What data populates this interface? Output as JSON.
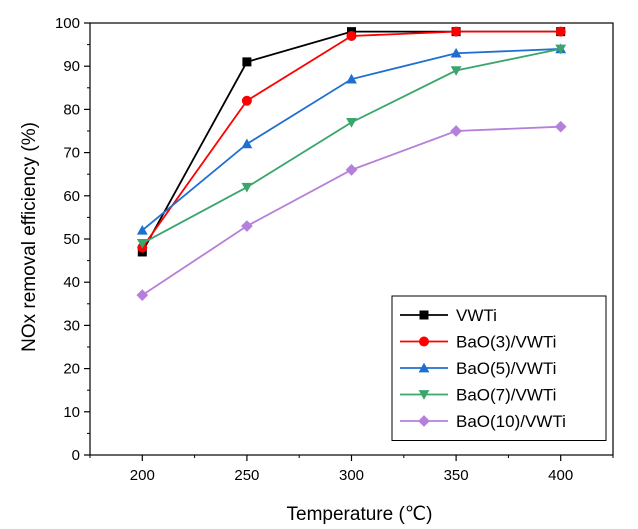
{
  "chart_data": {
    "type": "line",
    "title": "",
    "xlabel": "Temperature (℃)",
    "ylabel": "NOx removal efficiency (%)",
    "x": [
      200,
      250,
      300,
      350,
      400
    ],
    "xlim": [
      175,
      425
    ],
    "ylim": [
      0,
      100
    ],
    "xticks": [
      200,
      250,
      300,
      350,
      400
    ],
    "yticks": [
      0,
      10,
      20,
      30,
      40,
      50,
      60,
      70,
      80,
      90,
      100
    ],
    "grid": false,
    "legend_position": "bottom-right",
    "series": [
      {
        "name": "VWTi",
        "color": "#000000",
        "marker": "square",
        "values": [
          47,
          91,
          98,
          98,
          98
        ]
      },
      {
        "name": "BaO(3)/VWTi",
        "color": "#ff0000",
        "marker": "circle",
        "values": [
          48,
          82,
          97,
          98,
          98
        ]
      },
      {
        "name": "BaO(5)/VWTi",
        "color": "#1f6fd1",
        "marker": "triangle-up",
        "values": [
          52,
          72,
          87,
          93,
          94
        ]
      },
      {
        "name": "BaO(7)/VWTi",
        "color": "#3aa66b",
        "marker": "triangle-down",
        "values": [
          49,
          62,
          77,
          89,
          94
        ]
      },
      {
        "name": "BaO(10)/VWTi",
        "color": "#b57fdc",
        "marker": "diamond",
        "values": [
          37,
          53,
          66,
          75,
          76
        ]
      }
    ]
  }
}
